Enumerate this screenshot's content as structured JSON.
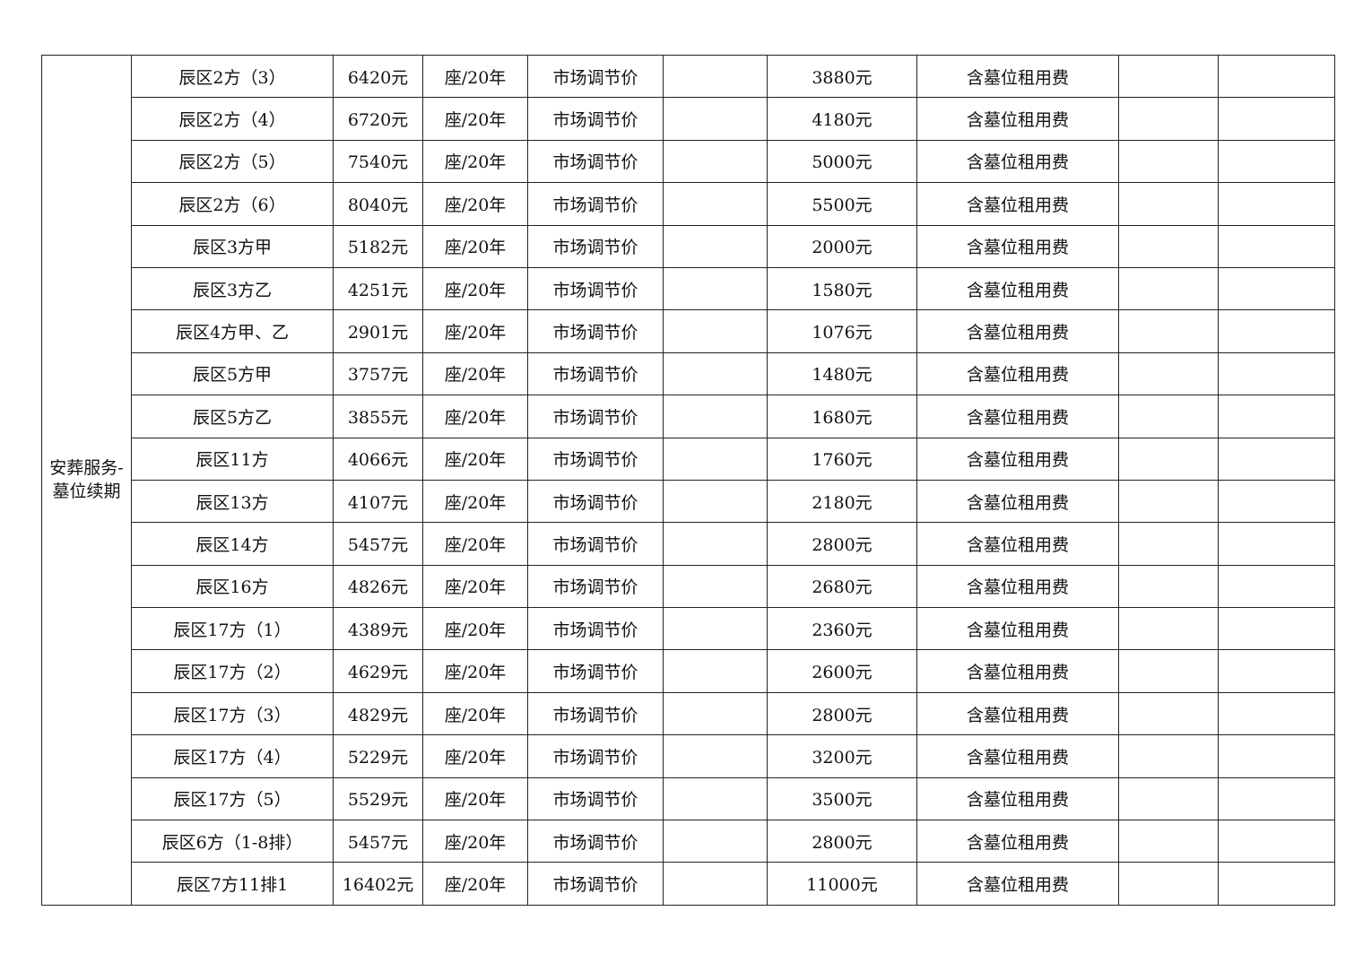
{
  "category": "安葬服务-墓位续期",
  "rows": [
    [
      "辰区2方（3）",
      "6420元",
      "座/20年",
      "市场调节价",
      "",
      "3880元",
      "含墓位租用费",
      "",
      ""
    ],
    [
      "辰区2方（4）",
      "6720元",
      "座/20年",
      "市场调节价",
      "",
      "4180元",
      "含墓位租用费",
      "",
      ""
    ],
    [
      "辰区2方（5）",
      "7540元",
      "座/20年",
      "市场调节价",
      "",
      "5000元",
      "含墓位租用费",
      "",
      ""
    ],
    [
      "辰区2方（6）",
      "8040元",
      "座/20年",
      "市场调节价",
      "",
      "5500元",
      "含墓位租用费",
      "",
      ""
    ],
    [
      "辰区3方甲",
      "5182元",
      "座/20年",
      "市场调节价",
      "",
      "2000元",
      "含墓位租用费",
      "",
      ""
    ],
    [
      "辰区3方乙",
      "4251元",
      "座/20年",
      "市场调节价",
      "",
      "1580元",
      "含墓位租用费",
      "",
      ""
    ],
    [
      "辰区4方甲、乙",
      "2901元",
      "座/20年",
      "市场调节价",
      "",
      "1076元",
      "含墓位租用费",
      "",
      ""
    ],
    [
      "辰区5方甲",
      "3757元",
      "座/20年",
      "市场调节价",
      "",
      "1480元",
      "含墓位租用费",
      "",
      ""
    ],
    [
      "辰区5方乙",
      "3855元",
      "座/20年",
      "市场调节价",
      "",
      "1680元",
      "含墓位租用费",
      "",
      ""
    ],
    [
      "辰区11方",
      "4066元",
      "座/20年",
      "市场调节价",
      "",
      "1760元",
      "含墓位租用费",
      "",
      ""
    ],
    [
      "辰区13方",
      "4107元",
      "座/20年",
      "市场调节价",
      "",
      "2180元",
      "含墓位租用费",
      "",
      ""
    ],
    [
      "辰区14方",
      "5457元",
      "座/20年",
      "市场调节价",
      "",
      "2800元",
      "含墓位租用费",
      "",
      ""
    ],
    [
      "辰区16方",
      "4826元",
      "座/20年",
      "市场调节价",
      "",
      "2680元",
      "含墓位租用费",
      "",
      ""
    ],
    [
      "辰区17方（1）",
      "4389元",
      "座/20年",
      "市场调节价",
      "",
      "2360元",
      "含墓位租用费",
      "",
      ""
    ],
    [
      "辰区17方（2）",
      "4629元",
      "座/20年",
      "市场调节价",
      "",
      "2600元",
      "含墓位租用费",
      "",
      ""
    ],
    [
      "辰区17方（3）",
      "4829元",
      "座/20年",
      "市场调节价",
      "",
      "2800元",
      "含墓位租用费",
      "",
      ""
    ],
    [
      "辰区17方（4）",
      "5229元",
      "座/20年",
      "市场调节价",
      "",
      "3200元",
      "含墓位租用费",
      "",
      ""
    ],
    [
      "辰区17方（5）",
      "5529元",
      "座/20年",
      "市场调节价",
      "",
      "3500元",
      "含墓位租用费",
      "",
      ""
    ],
    [
      "辰区6方（1-8排）",
      "5457元",
      "座/20年",
      "市场调节价",
      "",
      "2800元",
      "含墓位租用费",
      "",
      ""
    ],
    [
      "辰区7方11排1",
      "16402元",
      "座/20年",
      "市场调节价",
      "",
      "11000元",
      "含墓位租用费",
      "",
      ""
    ]
  ]
}
